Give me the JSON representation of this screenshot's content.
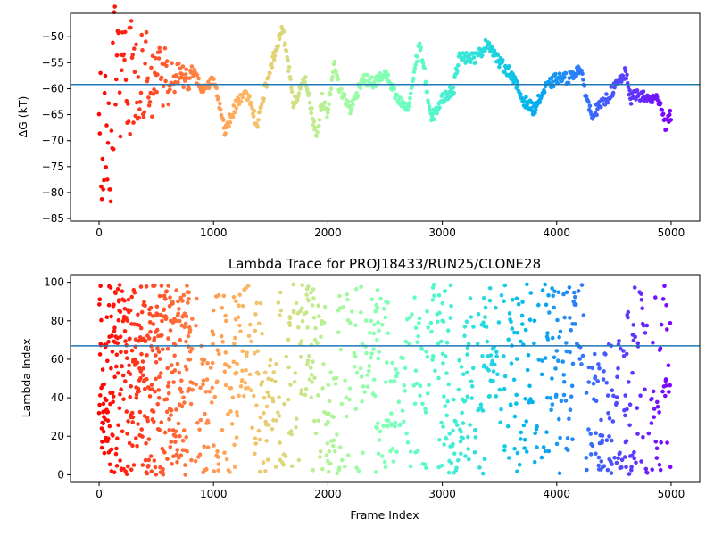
{
  "chart_data": [
    {
      "type": "scatter",
      "title": "",
      "xlabel": "",
      "ylabel": "ΔG (kT)",
      "xlim": [
        -250,
        5250
      ],
      "ylim": [
        -85.5,
        -45.5
      ],
      "xticks": [
        0,
        1000,
        2000,
        3000,
        4000,
        5000
      ],
      "yticks": [
        -85,
        -80,
        -75,
        -70,
        -65,
        -60,
        -55,
        -50
      ],
      "hline": -59.2,
      "colormap": "rainbow",
      "hline_color": "#1f77b4",
      "marker_size_note": "small dots",
      "trace_anchors": {
        "x": [
          0,
          100,
          200,
          300,
          400,
          500,
          600,
          700,
          800,
          900,
          1000,
          1050,
          1100,
          1200,
          1300,
          1380,
          1450,
          1500,
          1600,
          1650,
          1700,
          1800,
          1900,
          1950,
          2000,
          2050,
          2100,
          2200,
          2300,
          2400,
          2450,
          2500,
          2600,
          2700,
          2800,
          2850,
          2900,
          3000,
          3100,
          3150,
          3200,
          3300,
          3400,
          3500,
          3600,
          3700,
          3800,
          3900,
          4000,
          4100,
          4150,
          4200,
          4300,
          4400,
          4500,
          4600,
          4650,
          4700,
          4800,
          4900,
          4950,
          5000
        ],
        "y": [
          -60,
          -62,
          -58,
          -57,
          -60,
          -55,
          -58,
          -57,
          -56,
          -60,
          -58,
          -63,
          -68,
          -63,
          -61,
          -67,
          -60,
          -56,
          -48,
          -55,
          -63,
          -58,
          -69,
          -62,
          -65,
          -55,
          -60,
          -64,
          -58,
          -59,
          -58,
          -57,
          -62,
          -64,
          -51,
          -58,
          -66,
          -62,
          -60,
          -53,
          -54,
          -54,
          -51,
          -55,
          -57,
          -62,
          -64,
          -60,
          -58,
          -58,
          -57,
          -56,
          -65,
          -63,
          -60,
          -57,
          -62,
          -61,
          -62,
          -62,
          -67,
          -65
        ]
      },
      "early_scatter_range": [
        0,
        800
      ]
    },
    {
      "type": "scatter",
      "title": "Lambda Trace for PROJ18433/RUN25/CLONE28",
      "xlabel": "Frame Index",
      "ylabel": "Lambda Index",
      "xlim": [
        -250,
        5250
      ],
      "ylim": [
        -4,
        104
      ],
      "xticks": [
        0,
        1000,
        2000,
        3000,
        4000,
        5000
      ],
      "yticks": [
        0,
        20,
        40,
        60,
        80,
        100
      ],
      "hline": 67,
      "colormap": "rainbow",
      "hline_color": "#1f77b4",
      "range_note": "points spread across lambda 0-99 for frames 0-5000"
    }
  ]
}
